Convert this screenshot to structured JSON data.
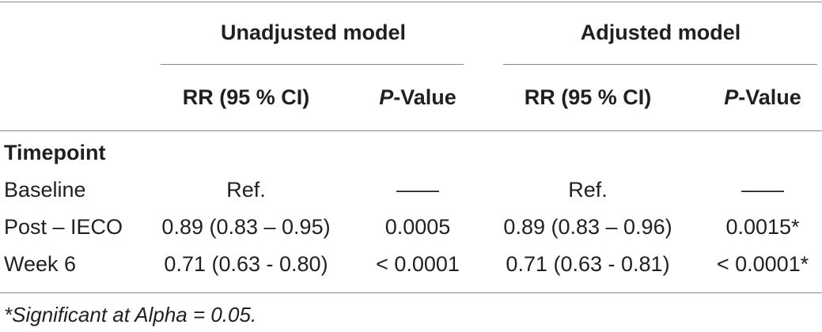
{
  "table": {
    "group_headers": {
      "unadjusted": "Unadjusted model",
      "adjusted": "Adjusted model"
    },
    "sub_headers": {
      "rr_unadj": "RR (95 % CI)",
      "p_unadj_prefix": "P",
      "p_unadj_suffix": "-Value",
      "rr_adj": "RR (95 % CI)",
      "p_adj_prefix": "P",
      "p_adj_suffix": "-Value"
    },
    "section_label": "Timepoint",
    "rows": [
      {
        "label": "Baseline",
        "rr_unadj": "Ref.",
        "p_unadj": "——",
        "rr_adj": "Ref.",
        "p_adj": "——"
      },
      {
        "label": "Post – IECO",
        "rr_unadj": "0.89 (0.83 – 0.95)",
        "p_unadj": "0.0005",
        "rr_adj": "0.89 (0.83 – 0.96)",
        "p_adj": "0.0015*"
      },
      {
        "label": "Week 6",
        "rr_unadj": "0.71 (0.63 - 0.80)",
        "p_unadj": "< 0.0001",
        "rr_adj": "0.71 (0.63 - 0.81)",
        "p_adj": "< 0.0001*"
      }
    ],
    "footnote": "*Significant at Alpha = 0.05."
  }
}
